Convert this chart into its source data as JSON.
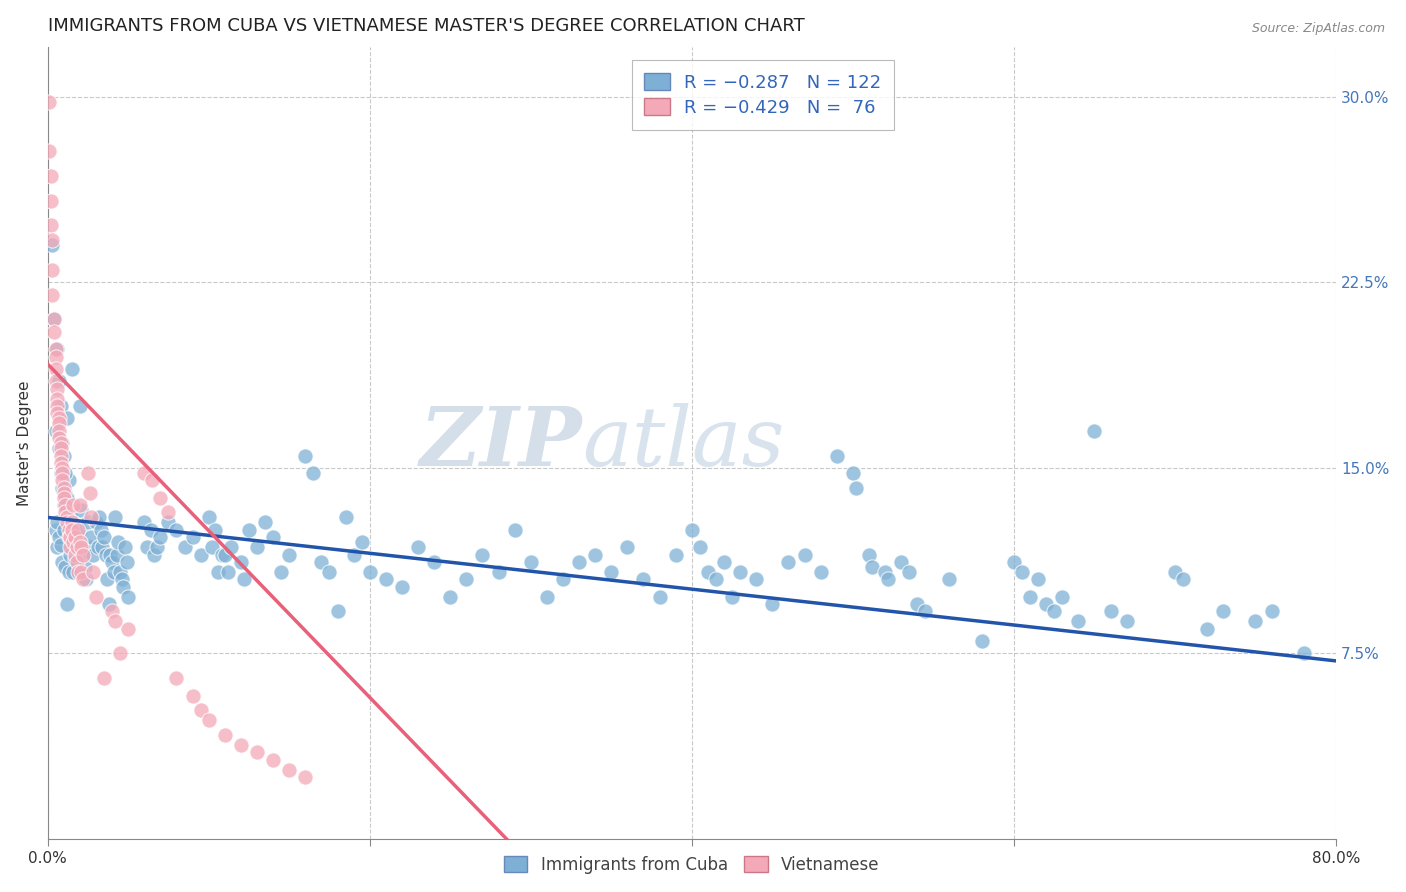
{
  "title": "IMMIGRANTS FROM CUBA VS VIETNAMESE MASTER'S DEGREE CORRELATION CHART",
  "source": "Source: ZipAtlas.com",
  "ylabel": "Master's Degree",
  "xlim": [
    0.0,
    0.8
  ],
  "ylim": [
    0.0,
    0.32
  ],
  "yticklabels_right": [
    "7.5%",
    "15.0%",
    "22.5%",
    "30.0%"
  ],
  "yticks_right": [
    0.075,
    0.15,
    0.225,
    0.3
  ],
  "blue_color": "#7EB0D5",
  "pink_color": "#F4A9B8",
  "blue_line_color": "#2255AA",
  "pink_line_color": "#E8607A",
  "watermark_zip": "ZIP",
  "watermark_atlas": "atlas",
  "title_fontsize": 13,
  "label_fontsize": 11,
  "tick_fontsize": 11,
  "blue_trend_x": [
    0.0,
    0.8
  ],
  "blue_trend_y": [
    0.13,
    0.072
  ],
  "pink_trend_x": [
    0.0,
    0.285
  ],
  "pink_trend_y": [
    0.192,
    0.0
  ],
  "blue_points": [
    [
      0.003,
      0.24
    ],
    [
      0.004,
      0.21
    ],
    [
      0.005,
      0.165
    ],
    [
      0.006,
      0.198
    ],
    [
      0.007,
      0.185
    ],
    [
      0.008,
      0.175
    ],
    [
      0.009,
      0.16
    ],
    [
      0.01,
      0.155
    ],
    [
      0.011,
      0.14
    ],
    [
      0.012,
      0.17
    ],
    [
      0.013,
      0.145
    ],
    [
      0.014,
      0.13
    ],
    [
      0.005,
      0.125
    ],
    [
      0.006,
      0.118
    ],
    [
      0.007,
      0.158
    ],
    [
      0.008,
      0.148
    ],
    [
      0.009,
      0.142
    ],
    [
      0.01,
      0.135
    ],
    [
      0.011,
      0.148
    ],
    [
      0.012,
      0.095
    ],
    [
      0.015,
      0.19
    ],
    [
      0.02,
      0.175
    ],
    [
      0.006,
      0.128
    ],
    [
      0.007,
      0.122
    ],
    [
      0.008,
      0.119
    ],
    [
      0.009,
      0.112
    ],
    [
      0.01,
      0.125
    ],
    [
      0.011,
      0.11
    ],
    [
      0.012,
      0.138
    ],
    [
      0.013,
      0.108
    ],
    [
      0.014,
      0.115
    ],
    [
      0.015,
      0.122
    ],
    [
      0.016,
      0.108
    ],
    [
      0.017,
      0.113
    ],
    [
      0.018,
      0.12
    ],
    [
      0.019,
      0.118
    ],
    [
      0.02,
      0.125
    ],
    [
      0.021,
      0.133
    ],
    [
      0.022,
      0.115
    ],
    [
      0.023,
      0.11
    ],
    [
      0.024,
      0.105
    ],
    [
      0.025,
      0.128
    ],
    [
      0.026,
      0.118
    ],
    [
      0.027,
      0.122
    ],
    [
      0.028,
      0.115
    ],
    [
      0.03,
      0.128
    ],
    [
      0.031,
      0.118
    ],
    [
      0.032,
      0.13
    ],
    [
      0.033,
      0.125
    ],
    [
      0.034,
      0.118
    ],
    [
      0.035,
      0.122
    ],
    [
      0.036,
      0.115
    ],
    [
      0.037,
      0.105
    ],
    [
      0.038,
      0.095
    ],
    [
      0.039,
      0.115
    ],
    [
      0.04,
      0.112
    ],
    [
      0.041,
      0.108
    ],
    [
      0.042,
      0.13
    ],
    [
      0.043,
      0.115
    ],
    [
      0.044,
      0.12
    ],
    [
      0.045,
      0.108
    ],
    [
      0.046,
      0.105
    ],
    [
      0.047,
      0.102
    ],
    [
      0.048,
      0.118
    ],
    [
      0.049,
      0.112
    ],
    [
      0.05,
      0.098
    ],
    [
      0.06,
      0.128
    ],
    [
      0.062,
      0.118
    ],
    [
      0.064,
      0.125
    ],
    [
      0.066,
      0.115
    ],
    [
      0.068,
      0.118
    ],
    [
      0.07,
      0.122
    ],
    [
      0.075,
      0.128
    ],
    [
      0.08,
      0.125
    ],
    [
      0.085,
      0.118
    ],
    [
      0.09,
      0.122
    ],
    [
      0.095,
      0.115
    ],
    [
      0.1,
      0.13
    ],
    [
      0.102,
      0.118
    ],
    [
      0.104,
      0.125
    ],
    [
      0.106,
      0.108
    ],
    [
      0.108,
      0.115
    ],
    [
      0.11,
      0.115
    ],
    [
      0.112,
      0.108
    ],
    [
      0.114,
      0.118
    ],
    [
      0.12,
      0.112
    ],
    [
      0.122,
      0.105
    ],
    [
      0.125,
      0.125
    ],
    [
      0.13,
      0.118
    ],
    [
      0.135,
      0.128
    ],
    [
      0.14,
      0.122
    ],
    [
      0.145,
      0.108
    ],
    [
      0.15,
      0.115
    ],
    [
      0.16,
      0.155
    ],
    [
      0.165,
      0.148
    ],
    [
      0.17,
      0.112
    ],
    [
      0.175,
      0.108
    ],
    [
      0.18,
      0.092
    ],
    [
      0.185,
      0.13
    ],
    [
      0.19,
      0.115
    ],
    [
      0.195,
      0.12
    ],
    [
      0.2,
      0.108
    ],
    [
      0.21,
      0.105
    ],
    [
      0.22,
      0.102
    ],
    [
      0.23,
      0.118
    ],
    [
      0.24,
      0.112
    ],
    [
      0.25,
      0.098
    ],
    [
      0.26,
      0.105
    ],
    [
      0.27,
      0.115
    ],
    [
      0.28,
      0.108
    ],
    [
      0.29,
      0.125
    ],
    [
      0.3,
      0.112
    ],
    [
      0.31,
      0.098
    ],
    [
      0.32,
      0.105
    ],
    [
      0.33,
      0.112
    ],
    [
      0.34,
      0.115
    ],
    [
      0.35,
      0.108
    ],
    [
      0.36,
      0.118
    ],
    [
      0.37,
      0.105
    ],
    [
      0.38,
      0.098
    ],
    [
      0.39,
      0.115
    ],
    [
      0.4,
      0.125
    ],
    [
      0.405,
      0.118
    ],
    [
      0.41,
      0.108
    ],
    [
      0.415,
      0.105
    ],
    [
      0.42,
      0.112
    ],
    [
      0.425,
      0.098
    ],
    [
      0.43,
      0.108
    ],
    [
      0.44,
      0.105
    ],
    [
      0.45,
      0.095
    ],
    [
      0.46,
      0.112
    ],
    [
      0.47,
      0.115
    ],
    [
      0.48,
      0.108
    ],
    [
      0.49,
      0.155
    ],
    [
      0.5,
      0.148
    ],
    [
      0.502,
      0.142
    ],
    [
      0.51,
      0.115
    ],
    [
      0.512,
      0.11
    ],
    [
      0.52,
      0.108
    ],
    [
      0.522,
      0.105
    ],
    [
      0.53,
      0.112
    ],
    [
      0.535,
      0.108
    ],
    [
      0.54,
      0.095
    ],
    [
      0.545,
      0.092
    ],
    [
      0.56,
      0.105
    ],
    [
      0.58,
      0.08
    ],
    [
      0.6,
      0.112
    ],
    [
      0.605,
      0.108
    ],
    [
      0.61,
      0.098
    ],
    [
      0.615,
      0.105
    ],
    [
      0.62,
      0.095
    ],
    [
      0.625,
      0.092
    ],
    [
      0.63,
      0.098
    ],
    [
      0.64,
      0.088
    ],
    [
      0.65,
      0.165
    ],
    [
      0.66,
      0.092
    ],
    [
      0.67,
      0.088
    ],
    [
      0.7,
      0.108
    ],
    [
      0.705,
      0.105
    ],
    [
      0.72,
      0.085
    ],
    [
      0.73,
      0.092
    ],
    [
      0.75,
      0.088
    ],
    [
      0.76,
      0.092
    ],
    [
      0.78,
      0.075
    ]
  ],
  "pink_points": [
    [
      0.001,
      0.298
    ],
    [
      0.001,
      0.278
    ],
    [
      0.002,
      0.268
    ],
    [
      0.002,
      0.258
    ],
    [
      0.002,
      0.248
    ],
    [
      0.003,
      0.23
    ],
    [
      0.003,
      0.22
    ],
    [
      0.003,
      0.242
    ],
    [
      0.004,
      0.21
    ],
    [
      0.004,
      0.205
    ],
    [
      0.005,
      0.198
    ],
    [
      0.005,
      0.195
    ],
    [
      0.005,
      0.19
    ],
    [
      0.005,
      0.185
    ],
    [
      0.006,
      0.182
    ],
    [
      0.006,
      0.178
    ],
    [
      0.006,
      0.175
    ],
    [
      0.006,
      0.172
    ],
    [
      0.007,
      0.17
    ],
    [
      0.007,
      0.168
    ],
    [
      0.007,
      0.165
    ],
    [
      0.007,
      0.162
    ],
    [
      0.008,
      0.16
    ],
    [
      0.008,
      0.158
    ],
    [
      0.008,
      0.155
    ],
    [
      0.008,
      0.152
    ],
    [
      0.009,
      0.15
    ],
    [
      0.009,
      0.148
    ],
    [
      0.009,
      0.145
    ],
    [
      0.01,
      0.142
    ],
    [
      0.01,
      0.14
    ],
    [
      0.01,
      0.138
    ],
    [
      0.011,
      0.135
    ],
    [
      0.011,
      0.132
    ],
    [
      0.012,
      0.13
    ],
    [
      0.012,
      0.128
    ],
    [
      0.013,
      0.125
    ],
    [
      0.013,
      0.122
    ],
    [
      0.014,
      0.118
    ],
    [
      0.014,
      0.122
    ],
    [
      0.015,
      0.128
    ],
    [
      0.015,
      0.125
    ],
    [
      0.016,
      0.135
    ],
    [
      0.016,
      0.12
    ],
    [
      0.017,
      0.115
    ],
    [
      0.017,
      0.122
    ],
    [
      0.018,
      0.118
    ],
    [
      0.018,
      0.112
    ],
    [
      0.019,
      0.108
    ],
    [
      0.019,
      0.125
    ],
    [
      0.02,
      0.135
    ],
    [
      0.02,
      0.12
    ],
    [
      0.021,
      0.118
    ],
    [
      0.021,
      0.108
    ],
    [
      0.022,
      0.105
    ],
    [
      0.022,
      0.115
    ],
    [
      0.025,
      0.148
    ],
    [
      0.026,
      0.14
    ],
    [
      0.027,
      0.13
    ],
    [
      0.028,
      0.108
    ],
    [
      0.03,
      0.098
    ],
    [
      0.035,
      0.065
    ],
    [
      0.04,
      0.092
    ],
    [
      0.042,
      0.088
    ],
    [
      0.045,
      0.075
    ],
    [
      0.05,
      0.085
    ],
    [
      0.06,
      0.148
    ],
    [
      0.065,
      0.145
    ],
    [
      0.07,
      0.138
    ],
    [
      0.075,
      0.132
    ],
    [
      0.08,
      0.065
    ],
    [
      0.09,
      0.058
    ],
    [
      0.095,
      0.052
    ],
    [
      0.1,
      0.048
    ],
    [
      0.11,
      0.042
    ],
    [
      0.12,
      0.038
    ],
    [
      0.13,
      0.035
    ],
    [
      0.14,
      0.032
    ],
    [
      0.15,
      0.028
    ],
    [
      0.16,
      0.025
    ]
  ]
}
